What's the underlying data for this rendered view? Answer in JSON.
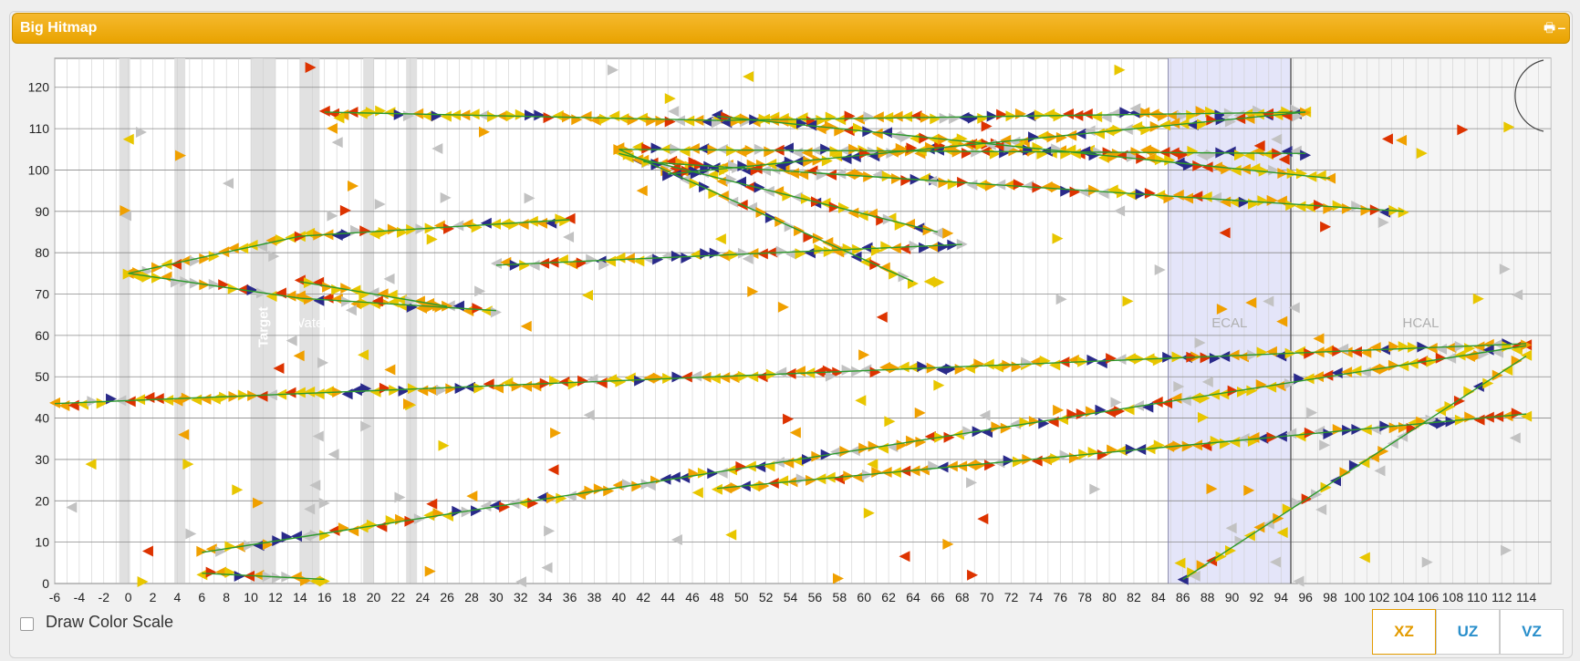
{
  "header": {
    "title": "Big Hitmap"
  },
  "controls": {
    "draw_color_scale_label": "Draw Color Scale",
    "view_buttons": [
      "XZ",
      "UZ",
      "VZ"
    ],
    "active_view": "XZ"
  },
  "colors": {
    "header": "#f0ab12",
    "hit_yellow": "#e8c600",
    "hit_orange": "#f0a000",
    "hit_red": "#dd3300",
    "hit_navy": "#2a2a8a",
    "hit_grey": "#c2c2c2",
    "track": "#2c9a2c",
    "ecal_band": "#dfe1f8"
  },
  "chart_data": {
    "type": "scatter",
    "title": "",
    "xlabel": "",
    "ylabel": "",
    "xlim": [
      -6,
      116
    ],
    "ylim": [
      0,
      127
    ],
    "x_tick_labels": [
      "-6",
      "-4",
      "-2",
      "0",
      "2",
      "4",
      "6",
      "8",
      "10",
      "12",
      "14",
      "16",
      "18",
      "20",
      "22",
      "24",
      "26",
      "28",
      "30",
      "32",
      "34",
      "36",
      "38",
      "40",
      "42",
      "44",
      "46",
      "48",
      "50",
      "52",
      "54",
      "56",
      "58",
      "60",
      "62",
      "64",
      "66",
      "68",
      "70",
      "72",
      "74",
      "76",
      "78",
      "80",
      "82",
      "84",
      "86",
      "88",
      "90",
      "92",
      "94",
      "96",
      "98",
      "100",
      "102",
      "104",
      "106",
      "108",
      "110",
      "112",
      "114"
    ],
    "y_ticks": [
      0,
      10,
      20,
      30,
      40,
      50,
      60,
      70,
      80,
      90,
      100,
      110,
      120
    ],
    "regions": [
      {
        "label": "Target",
        "x": [
          10,
          12
        ]
      },
      {
        "label": "Water",
        "x": [
          14,
          15.6
        ]
      },
      {
        "label": "ECAL",
        "x": [
          84.8,
          94.8
        ]
      },
      {
        "label": "HCAL",
        "x": [
          94.8,
          116
        ]
      }
    ],
    "tracks": [
      {
        "x": [
          0,
          14
        ],
        "y": [
          75,
          84
        ]
      },
      {
        "x": [
          14,
          36
        ],
        "y": [
          84,
          88
        ]
      },
      {
        "x": [
          0,
          14
        ],
        "y": [
          75,
          69
        ]
      },
      {
        "x": [
          14,
          30
        ],
        "y": [
          69,
          66
        ]
      },
      {
        "x": [
          14,
          26
        ],
        "y": [
          73,
          67
        ]
      },
      {
        "x": [
          -6,
          114
        ],
        "y": [
          43.5,
          58
        ]
      },
      {
        "x": [
          6,
          114
        ],
        "y": [
          7.5,
          57.5
        ]
      },
      {
        "x": [
          48,
          114
        ],
        "y": [
          23,
          41
        ]
      },
      {
        "x": [
          86,
          114
        ],
        "y": [
          1,
          55
        ]
      },
      {
        "x": [
          6,
          16
        ],
        "y": [
          2.5,
          1
        ]
      },
      {
        "x": [
          16,
          48
        ],
        "y": [
          114,
          112
        ]
      },
      {
        "x": [
          48,
          96
        ],
        "y": [
          112,
          114
        ]
      },
      {
        "x": [
          40,
          96
        ],
        "y": [
          105,
          104
        ]
      },
      {
        "x": [
          42,
          104
        ],
        "y": [
          102,
          90
        ]
      },
      {
        "x": [
          40,
          66
        ],
        "y": [
          104,
          85
        ]
      },
      {
        "x": [
          40,
          64
        ],
        "y": [
          105,
          73
        ]
      },
      {
        "x": [
          44,
          96
        ],
        "y": [
          99,
          114
        ]
      },
      {
        "x": [
          30,
          68
        ],
        "y": [
          77,
          82
        ]
      },
      {
        "x": [
          48,
          98
        ],
        "y": [
          113,
          98
        ]
      }
    ]
  }
}
